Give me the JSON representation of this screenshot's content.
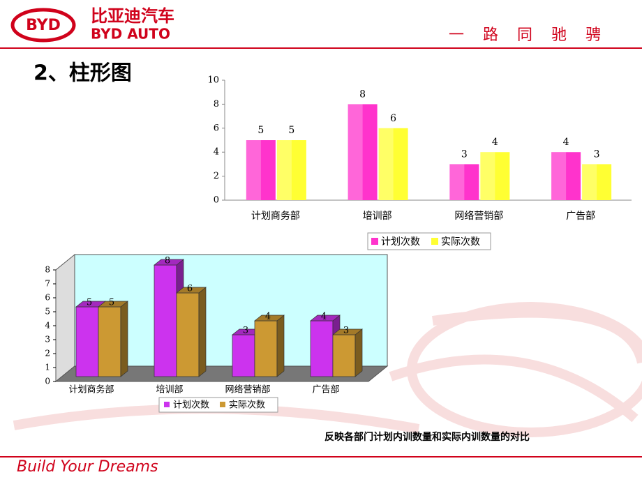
{
  "header": {
    "logo": "BYD",
    "brand_cn": "比亚迪汽车",
    "brand_en": "BYD AUTO",
    "slogan": "一路同驰骋"
  },
  "slide_title": "2、柱形图",
  "chart_data": [
    {
      "type": "bar",
      "categories": [
        "计划商务部",
        "培训部",
        "网络营销部",
        "广告部"
      ],
      "series": [
        {
          "name": "计划次数",
          "color": "#ff33cc",
          "values": [
            5,
            8,
            3,
            4
          ]
        },
        {
          "name": "实际次数",
          "color": "#ffff33",
          "values": [
            5,
            6,
            4,
            3
          ]
        }
      ],
      "ylim": [
        0,
        10
      ],
      "yticks": [
        0,
        2,
        4,
        6,
        8,
        10
      ],
      "legend": "bottom"
    },
    {
      "type": "bar3d",
      "categories": [
        "计划商务部",
        "培训部",
        "网络营销部",
        "广告部"
      ],
      "series": [
        {
          "name": "计划次数",
          "color": "#cc33ee",
          "values": [
            5,
            8,
            3,
            4
          ]
        },
        {
          "name": "实际次数",
          "color": "#cc9933",
          "values": [
            5,
            6,
            4,
            3
          ]
        }
      ],
      "ylim": [
        0,
        8
      ],
      "yticks": [
        0,
        1,
        2,
        3,
        4,
        5,
        6,
        7,
        8
      ],
      "legend": "bottom",
      "background": "#ccffff"
    }
  ],
  "caption": "反映各部门计划内训数量和实际内训数量的对比",
  "footer": "Build Your Dreams"
}
